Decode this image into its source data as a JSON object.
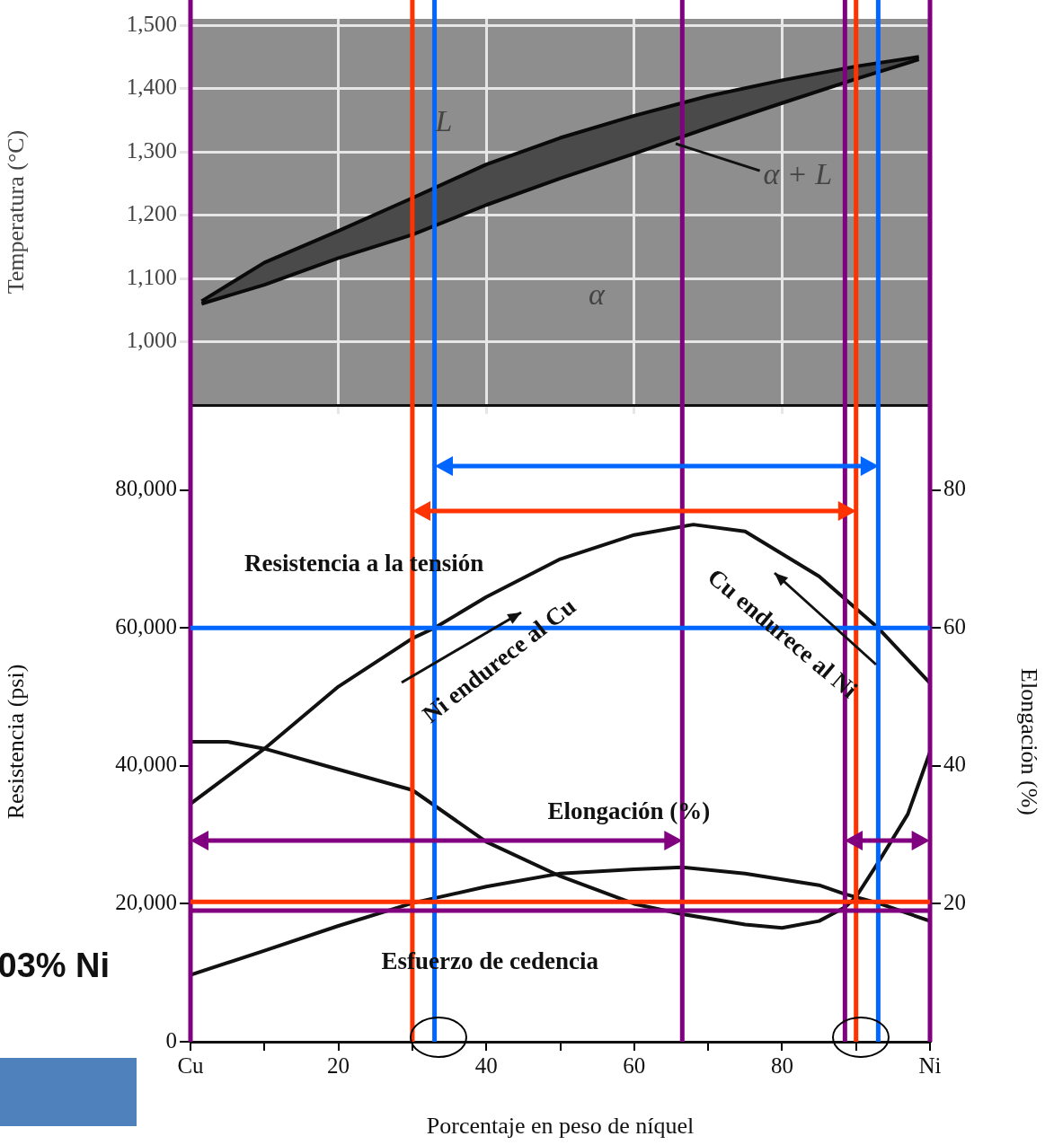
{
  "chart_data": [
    {
      "type": "line",
      "ylabel": "Temperatura (°C)",
      "x": [
        1.5,
        10,
        20,
        30,
        40,
        50,
        60,
        70,
        80,
        90,
        98.5
      ],
      "series": [
        {
          "color": "#0a0a0a",
          "values": [
            1064,
            1125,
            1175,
            1227,
            1280,
            1322,
            1357,
            1388,
            1413,
            1435,
            1450
          ]
        },
        {
          "color": "#0a0a0a",
          "values": [
            1060,
            1090,
            1132,
            1169,
            1216,
            1258,
            1297,
            1338,
            1377,
            1415,
            1446
          ],
          "lower": [
            1060,
            1090,
            1132,
            1169,
            1216,
            1258,
            1297,
            1338,
            1377,
            1415,
            1446
          ],
          "upper": [
            1064,
            1125,
            1175,
            1227,
            1280,
            1322,
            1357,
            1388,
            1413,
            1435,
            1450
          ]
        }
      ],
      "xlim": [
        0,
        100
      ],
      "xticks": [
        {
          "value": 0,
          "label": null
        },
        {
          "value": 20,
          "label": null
        },
        {
          "value": 40,
          "label": null
        },
        {
          "value": 60,
          "label": null
        },
        {
          "value": 80,
          "label": null
        },
        {
          "value": 100,
          "label": null
        }
      ],
      "ylim": [
        900,
        1510
      ],
      "yticks": [
        {
          "value": 1000,
          "label": "1,000"
        },
        {
          "value": 1100,
          "label": "1,100"
        },
        {
          "value": 1200,
          "label": "1,200"
        },
        {
          "value": 1300,
          "label": "1,300"
        },
        {
          "value": 1400,
          "label": "1,400"
        },
        {
          "value": 1500,
          "label": "1,500"
        }
      ],
      "grid": true,
      "legend": false,
      "tick_labels": "y",
      "marker": "none",
      "annotations": [
        "L",
        "α",
        {
          "text": "α + L",
          "x": 65.6,
          "y": 1313
        }
      ],
      "ref_lines": [
        {
          "axis": "x",
          "value": 33,
          "color": "#0066ff"
        },
        {
          "axis": "x",
          "value": 93,
          "color": "#0066ff"
        },
        {
          "axis": "x",
          "value": 30,
          "color": "#ff3300"
        },
        {
          "axis": "x",
          "value": 90,
          "color": "#ff3300"
        },
        {
          "axis": "x",
          "value": 0,
          "color": "#800080"
        },
        {
          "axis": "x",
          "value": 66.5,
          "color": "#800080"
        },
        {
          "axis": "x",
          "value": 88.5,
          "color": "#800080"
        },
        {
          "axis": "x",
          "value": 100,
          "color": "#800080"
        }
      ]
    },
    {
      "type": "line",
      "xlabel": "Porcentaje en peso de níquel",
      "ylabel": "Resistencia (psi)",
      "y2label": "Elongación (%)",
      "series": [
        {
          "color": "#111111",
          "x": [
            0,
            10,
            20,
            30,
            33,
            40,
            50,
            60,
            68,
            75,
            85,
            93,
            100
          ],
          "values": [
            34500,
            42500,
            51500,
            58500,
            60000,
            64500,
            70000,
            73500,
            75000,
            74000,
            67500,
            60000,
            52000
          ]
        },
        {
          "color": "#111111",
          "axis": "y2",
          "x": [
            0,
            5,
            10,
            20,
            30,
            40,
            50,
            60,
            66.5,
            75,
            80,
            85,
            88.5,
            90,
            93,
            97,
            100
          ],
          "values": [
            43.5,
            43.5,
            42.5,
            39.5,
            36.5,
            29,
            24,
            20,
            18.5,
            17,
            16.5,
            17.5,
            19.5,
            21,
            26,
            33,
            42
          ]
        },
        {
          "color": "#111111",
          "x": [
            0,
            10,
            20,
            30,
            40,
            50,
            60,
            66.5,
            75,
            85,
            88.5,
            93,
            100
          ],
          "values": [
            9700,
            13200,
            16800,
            20100,
            22500,
            24400,
            25000,
            25300,
            24400,
            22700,
            21400,
            20100,
            17500
          ]
        }
      ],
      "xlim": [
        0,
        100
      ],
      "xticks": [
        {
          "value": 0,
          "label": "Cu"
        },
        {
          "value": 10,
          "label": null
        },
        {
          "value": 20,
          "label": "20"
        },
        {
          "value": 30,
          "label": null
        },
        {
          "value": 40,
          "label": "40"
        },
        {
          "value": 50,
          "label": null
        },
        {
          "value": 60,
          "label": "60"
        },
        {
          "value": 70,
          "label": null
        },
        {
          "value": 80,
          "label": "80"
        },
        {
          "value": 90,
          "label": null
        },
        {
          "value": 100,
          "label": "Ni"
        }
      ],
      "ylim": [
        0,
        87000
      ],
      "yticks": [
        0,
        {
          "value": 20000,
          "label": "20,000"
        },
        {
          "value": 40000,
          "label": "40,000"
        },
        {
          "value": 60000,
          "label": "60,000"
        },
        {
          "value": 80000,
          "label": "80,000"
        }
      ],
      "y2lim": [
        0,
        87
      ],
      "y2ticks": [
        20,
        40,
        60,
        80
      ],
      "grid": false,
      "legend": false,
      "marker": "none",
      "annotations": [
        "Resistencia a la tensión",
        "Ni endurece al Cu",
        "Cu endurece al Ni",
        "Elongación (%)",
        "Esfuerzo de cedencia",
        "03% Ni"
      ],
      "ref_lines": [
        {
          "axis": "x",
          "value": 33,
          "color": "#0066ff"
        },
        {
          "axis": "x",
          "value": 93,
          "color": "#0066ff"
        },
        {
          "axis": "x",
          "value": 30,
          "color": "#ff3300"
        },
        {
          "axis": "x",
          "value": 90,
          "color": "#ff3300"
        },
        {
          "axis": "x",
          "value": 0,
          "color": "#800080"
        },
        {
          "axis": "x",
          "value": 66.5,
          "color": "#800080"
        },
        {
          "axis": "x",
          "value": 88.5,
          "color": "#800080"
        },
        {
          "axis": "x",
          "value": 100,
          "color": "#800080"
        },
        {
          "axis": "y",
          "value": 60000,
          "color": "#0066ff"
        },
        {
          "axis": "y",
          "value": 20300,
          "color": "#ff3300"
        },
        {
          "axis": "y",
          "value": 19000,
          "color": "#800080"
        }
      ]
    }
  ]
}
